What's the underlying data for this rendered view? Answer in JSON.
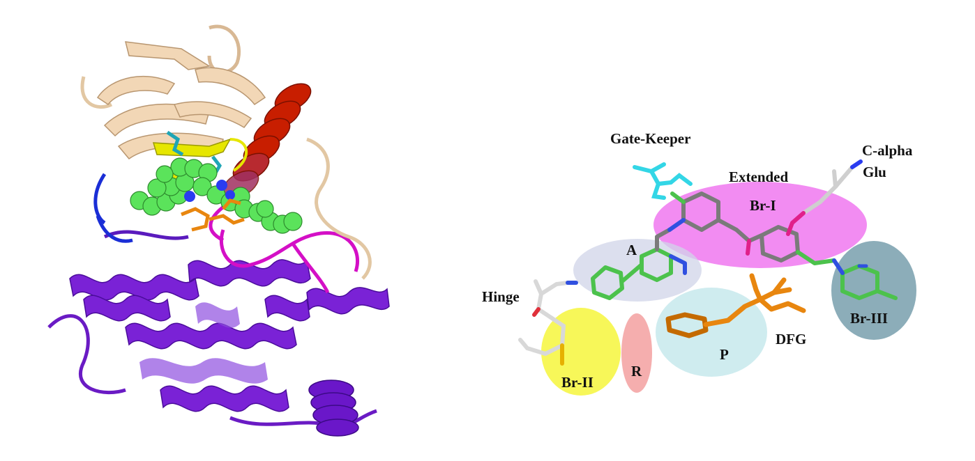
{
  "figure": {
    "left_panel": {
      "subject": "kinase ribbon structure with ligand spheres"
    },
    "right_panel": {
      "labels": {
        "gate_keeper": "Gate-Keeper",
        "c_alpha": "C-alpha",
        "glu": "Glu",
        "extended": "Extended",
        "br_i": "Br-I",
        "a": "A",
        "hinge": "Hinge",
        "br_ii": "Br-II",
        "r": "R",
        "p": "P",
        "dfg": "DFG",
        "br_iii": "Br-III"
      }
    },
    "colors": {
      "n_lobe": "#f2d7b6",
      "c_lobe": "#7a22d6",
      "alpha_c_helix": "#c81e00",
      "activation_loop": "#d40fc6",
      "glycine_loop": "#e6e600",
      "ligand": "#5be35b",
      "gate_keeper": "#33d6e6",
      "dfg": "#e8860f",
      "region_extended": "#ee66ee",
      "region_a": "#d0d4e8",
      "region_br_ii": "#f5f530",
      "region_r": "#f29a9a",
      "region_p": "#bfe6ea",
      "region_br_iii": "#6f98a8"
    }
  }
}
